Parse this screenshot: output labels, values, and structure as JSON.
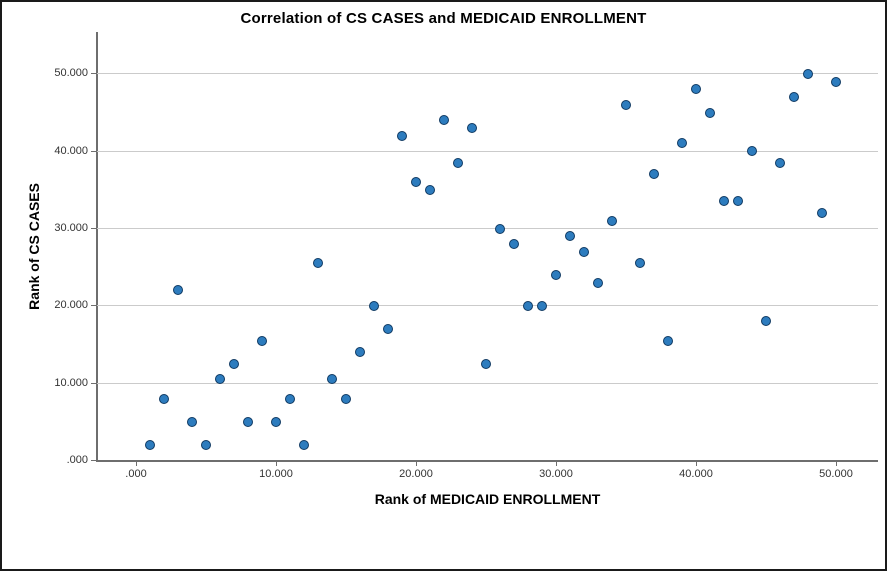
{
  "figure": {
    "title": "Correlation of CS CASES and MEDICAID ENROLLMENT"
  },
  "chart_data": {
    "type": "scatter",
    "title": "Correlation of CS CASES and MEDICAID ENROLLMENT",
    "xlabel": "Rank of MEDICAID ENROLLMENT",
    "ylabel": "Rank of CS CASES",
    "xlim": [
      -2.8,
      53
    ],
    "ylim": [
      0,
      55.4
    ],
    "grid": "horizontal-only",
    "legend": "none",
    "x_ticks": {
      "values": [
        0,
        10,
        20,
        30,
        40,
        50
      ],
      "labels": [
        ".000",
        "10.000",
        "20.000",
        "30.000",
        "40.000",
        "50.000"
      ]
    },
    "y_ticks": {
      "values": [
        0,
        10,
        20,
        30,
        40,
        50
      ],
      "labels": [
        ".000",
        "10.000",
        "20.000",
        "30.000",
        "40.000",
        "50.000"
      ]
    },
    "points": [
      [
        1,
        2
      ],
      [
        2,
        8
      ],
      [
        3,
        22
      ],
      [
        4,
        5
      ],
      [
        5,
        2
      ],
      [
        6,
        10.5
      ],
      [
        7,
        12.5
      ],
      [
        8,
        5
      ],
      [
        9,
        15.5
      ],
      [
        10,
        5
      ],
      [
        11,
        8
      ],
      [
        12,
        2
      ],
      [
        13,
        25.5
      ],
      [
        14,
        10.5
      ],
      [
        15,
        8
      ],
      [
        16,
        14
      ],
      [
        17,
        20
      ],
      [
        18,
        17
      ],
      [
        19,
        42
      ],
      [
        20,
        36
      ],
      [
        21,
        35
      ],
      [
        22,
        44
      ],
      [
        23,
        38.5
      ],
      [
        24,
        43
      ],
      [
        25,
        12.5
      ],
      [
        26,
        30
      ],
      [
        27,
        28
      ],
      [
        28,
        20
      ],
      [
        29,
        20
      ],
      [
        30,
        24
      ],
      [
        31,
        29
      ],
      [
        32,
        27
      ],
      [
        33,
        23
      ],
      [
        34,
        31
      ],
      [
        35,
        46
      ],
      [
        36,
        25.5
      ],
      [
        37,
        37
      ],
      [
        38,
        15.5
      ],
      [
        39,
        41
      ],
      [
        40,
        48
      ],
      [
        41,
        45
      ],
      [
        42,
        33.5
      ],
      [
        43,
        33.5
      ],
      [
        44,
        40
      ],
      [
        45,
        18
      ],
      [
        46,
        38.5
      ],
      [
        47,
        47
      ],
      [
        48,
        50
      ],
      [
        49,
        32
      ],
      [
        50,
        49
      ]
    ],
    "colors": {
      "marker_fill": "#2d7cbe",
      "marker_stroke": "#0f3a63",
      "gridline": "#cbcbcb",
      "axis_line": "#6e6e6e",
      "tick_label": "#333333",
      "title_text": "#000000",
      "outer_border": "#1a1a1a",
      "background": "#ffffff"
    }
  }
}
